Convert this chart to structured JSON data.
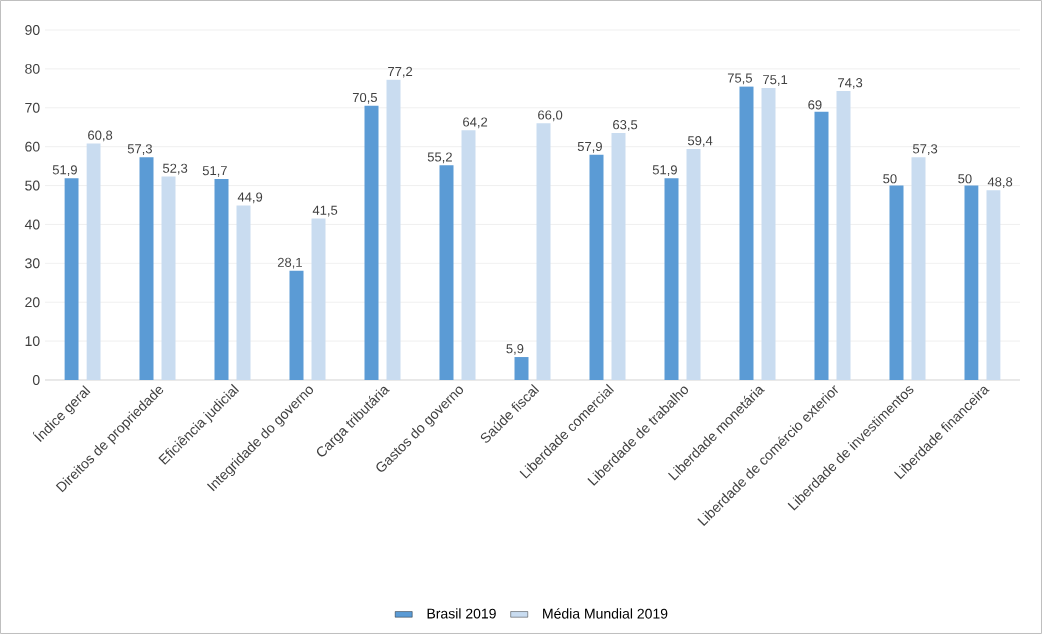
{
  "chart_data": {
    "type": "bar",
    "categories": [
      "Índice geral",
      "Direitos de propriedade",
      "Eficiência judicial",
      "Integridade do governo",
      "Carga tributária",
      "Gastos do governo",
      "Saúde fiscal",
      "Liberdade comercial",
      "Liberdade de trabalho",
      "Liberdade monetária",
      "Liberdade de comércio exterior",
      "Liberdade de investimentos",
      "Liberdade financeira"
    ],
    "series": [
      {
        "name": "Brasil 2019",
        "color": "#5b9bd5",
        "values": [
          51.9,
          57.3,
          51.7,
          28.1,
          70.5,
          55.2,
          5.9,
          57.9,
          51.9,
          75.5,
          69,
          50,
          50
        ],
        "value_labels": [
          "51,9",
          "57,3",
          "51,7",
          "28,1",
          "70,5",
          "55,2",
          "5,9",
          "57,9",
          "51,9",
          "75,5",
          "69",
          "50",
          "50"
        ]
      },
      {
        "name": "Média Mundial 2019",
        "color": "#c9dcf0",
        "values": [
          60.8,
          52.3,
          44.9,
          41.5,
          77.2,
          64.2,
          66.0,
          63.5,
          59.4,
          75.1,
          74.3,
          57.3,
          48.8
        ],
        "value_labels": [
          "60,8",
          "52,3",
          "44,9",
          "41,5",
          "77,2",
          "64,2",
          "66,0",
          "63,5",
          "59,4",
          "75,1",
          "74,3",
          "57,3",
          "48,8"
        ]
      }
    ],
    "ylim": [
      0,
      90
    ],
    "yticks": [
      0,
      10,
      20,
      30,
      40,
      50,
      60,
      70,
      80,
      90
    ],
    "grid": "y",
    "legend": "bottom"
  }
}
